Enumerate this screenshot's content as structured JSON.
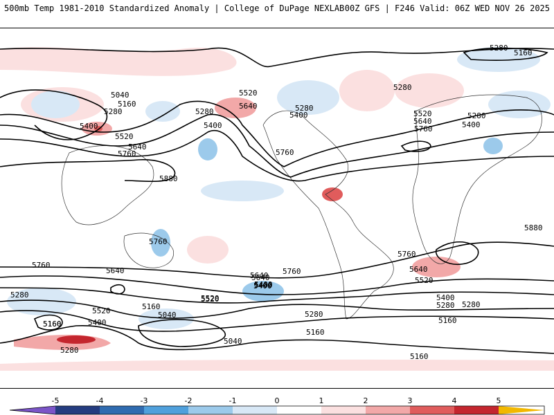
{
  "header": {
    "left_title": "500mb Temp 1981-2010 Standardized Anomaly | College of DuPage NEXLAB",
    "right_title": "00Z GFS | F246 Valid: 06Z WED NOV 26 2025"
  },
  "contour_labels": [
    {
      "text": "5280"
    },
    {
      "text": "5160"
    },
    {
      "text": "5040"
    },
    {
      "text": "5160"
    },
    {
      "text": "5280"
    },
    {
      "text": "5400"
    },
    {
      "text": "5520"
    },
    {
      "text": "5640"
    },
    {
      "text": "5760"
    },
    {
      "text": "5880"
    },
    {
      "text": "5520"
    },
    {
      "text": "5640"
    },
    {
      "text": "5280"
    },
    {
      "text": "5400"
    },
    {
      "text": "5280"
    },
    {
      "text": "5400"
    },
    {
      "text": "5760"
    },
    {
      "text": "5280"
    },
    {
      "text": "5520"
    },
    {
      "text": "5640"
    },
    {
      "text": "5760"
    },
    {
      "text": "5280"
    },
    {
      "text": "5400"
    },
    {
      "text": "5880"
    },
    {
      "text": "5760"
    },
    {
      "text": "5760"
    },
    {
      "text": "5640"
    },
    {
      "text": "5520"
    },
    {
      "text": "5400"
    },
    {
      "text": "5280"
    },
    {
      "text": "5160"
    },
    {
      "text": "5760"
    },
    {
      "text": "5760"
    },
    {
      "text": "5640"
    },
    {
      "text": "5520"
    },
    {
      "text": "5400"
    },
    {
      "text": "5280"
    },
    {
      "text": "5160"
    },
    {
      "text": "5280"
    },
    {
      "text": "5400"
    },
    {
      "text": "5520"
    },
    {
      "text": "5640"
    },
    {
      "text": "5400"
    },
    {
      "text": "5520"
    },
    {
      "text": "5640"
    },
    {
      "text": "5400"
    },
    {
      "text": "5280"
    },
    {
      "text": "5160"
    },
    {
      "text": "5160"
    },
    {
      "text": "5040"
    },
    {
      "text": "5040"
    },
    {
      "text": "5160"
    },
    {
      "text": "5280"
    },
    {
      "text": "5160"
    }
  ],
  "legend": {
    "ticks": [
      "-5",
      "-4",
      "-3",
      "-2",
      "-1",
      "0",
      "1",
      "2",
      "3",
      "4",
      "5"
    ],
    "colors": [
      "#7b55c8",
      "#243c80",
      "#2f6bb0",
      "#4fa0dc",
      "#9ccaeb",
      "#d8e8f6",
      "#ffffff",
      "#fbe0e0",
      "#f2a8a8",
      "#e05c5c",
      "#c4262e",
      "#8c0e14",
      "#f2b800"
    ]
  }
}
